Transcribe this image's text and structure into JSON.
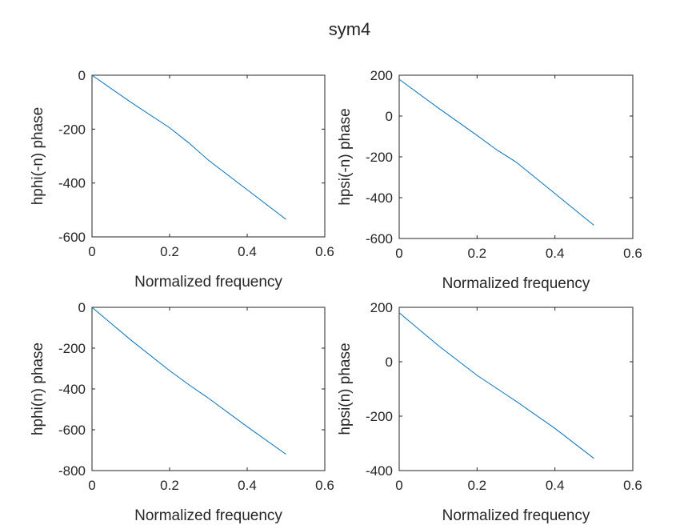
{
  "figure": {
    "title": "sym4",
    "line_color": "#0072BD",
    "axis_color": "#262626"
  },
  "chart_data": [
    {
      "type": "line",
      "xlabel": "Normalized frequency",
      "ylabel": "hphi(-n) phase",
      "xlim": [
        0,
        0.6
      ],
      "ylim": [
        -600,
        0
      ],
      "xticks": [
        0,
        0.2,
        0.4,
        0.6
      ],
      "yticks": [
        0,
        -200,
        -400,
        -600
      ],
      "grid": false,
      "series": [
        {
          "x": [
            0,
            0.1,
            0.2,
            0.25,
            0.3,
            0.4,
            0.5
          ],
          "y": [
            0,
            -100,
            -195,
            -252,
            -315,
            -425,
            -535
          ]
        }
      ]
    },
    {
      "type": "line",
      "xlabel": "Normalized frequency",
      "ylabel": "hpsi(-n) phase",
      "xlim": [
        0,
        0.6
      ],
      "ylim": [
        -600,
        200
      ],
      "xticks": [
        0,
        0.2,
        0.4,
        0.6
      ],
      "yticks": [
        200,
        0,
        -200,
        -400,
        -600
      ],
      "grid": false,
      "series": [
        {
          "x": [
            0,
            0.1,
            0.2,
            0.25,
            0.3,
            0.4,
            0.5
          ],
          "y": [
            180,
            40,
            -95,
            -165,
            -225,
            -380,
            -535
          ]
        }
      ]
    },
    {
      "type": "line",
      "xlabel": "Normalized frequency",
      "ylabel": "hphi(n) phase",
      "xlim": [
        0,
        0.6
      ],
      "ylim": [
        -800,
        0
      ],
      "xticks": [
        0,
        0.2,
        0.4,
        0.6
      ],
      "yticks": [
        0,
        -200,
        -400,
        -600,
        -800
      ],
      "grid": false,
      "series": [
        {
          "x": [
            0,
            0.1,
            0.2,
            0.25,
            0.3,
            0.4,
            0.5
          ],
          "y": [
            0,
            -160,
            -310,
            -380,
            -445,
            -585,
            -720
          ]
        }
      ]
    },
    {
      "type": "line",
      "xlabel": "Normalized frequency",
      "ylabel": "hpsi(n) phase",
      "xlim": [
        0,
        0.6
      ],
      "ylim": [
        -400,
        200
      ],
      "xticks": [
        0,
        0.2,
        0.4,
        0.6
      ],
      "yticks": [
        200,
        0,
        -200,
        -400
      ],
      "grid": false,
      "series": [
        {
          "x": [
            0,
            0.1,
            0.2,
            0.3,
            0.4,
            0.5
          ],
          "y": [
            180,
            60,
            -50,
            -145,
            -245,
            -355
          ]
        }
      ]
    }
  ]
}
